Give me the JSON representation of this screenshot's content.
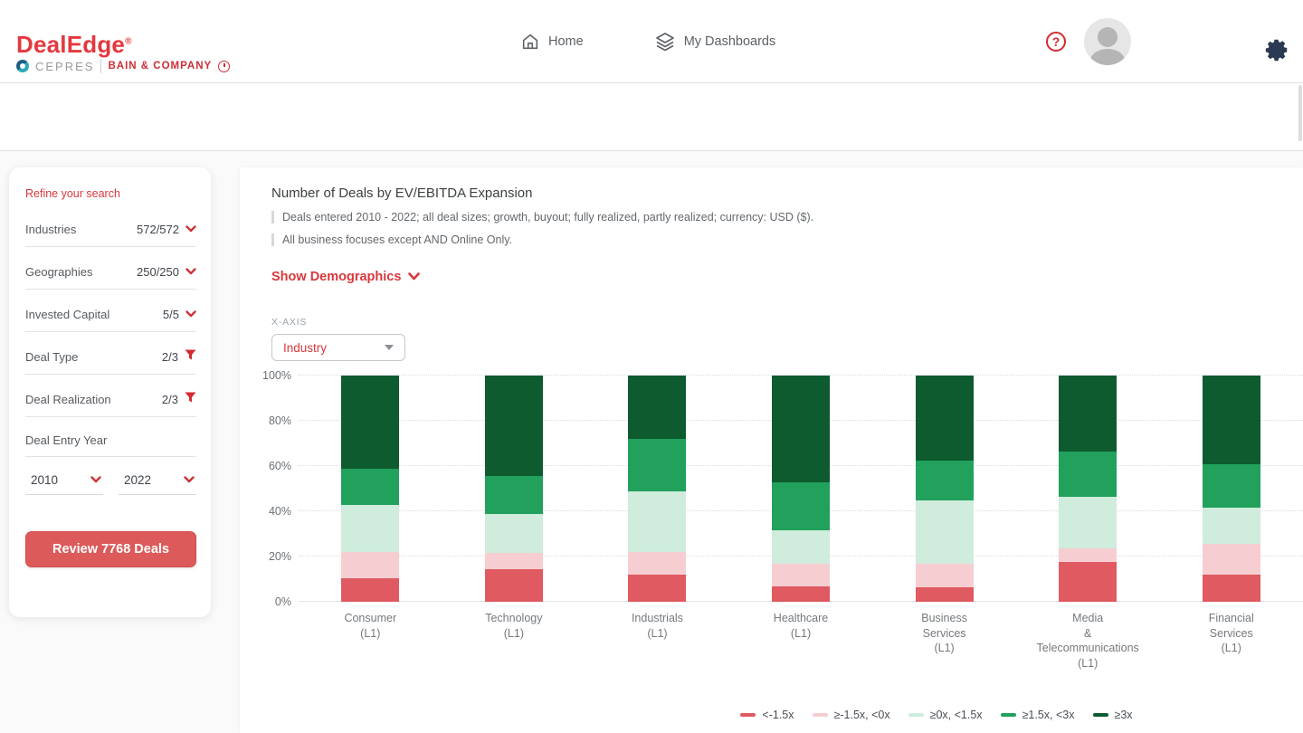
{
  "header": {
    "logo": {
      "title": "DealEdge",
      "reg": "®",
      "cepres": "CEPRES",
      "bain": "BAIN & COMPANY"
    },
    "nav": {
      "home": "Home",
      "dashboards": "My Dashboards"
    },
    "help": "?"
  },
  "sidebar": {
    "title": "Refine your search",
    "filters": [
      {
        "label": "Industries",
        "value": "572/572",
        "icon": "chevron"
      },
      {
        "label": "Geographies",
        "value": "250/250",
        "icon": "chevron"
      },
      {
        "label": "Invested Capital",
        "value": "5/5",
        "icon": "chevron"
      },
      {
        "label": "Deal Type",
        "value": "2/3",
        "icon": "filter"
      },
      {
        "label": "Deal Realization",
        "value": "2/3",
        "icon": "filter"
      },
      {
        "label": "Deal Entry Year",
        "value": "",
        "icon": "none"
      }
    ],
    "year_from": "2010",
    "year_to": "2022",
    "review_button": "Review 7768 Deals"
  },
  "main": {
    "title": "Number of Deals by EV/EBITDA Expansion",
    "subtitle_lines": [
      "Deals entered 2010 - 2022; all deal sizes; growth, buyout; fully realized, partly realized; currency: USD ($).",
      "All business focuses except AND Online Only."
    ],
    "show_demographics": "Show Demographics",
    "xaxis_label": "X-AXIS",
    "xaxis_value": "Industry"
  },
  "chart_data": {
    "type": "bar",
    "stacked": true,
    "unit": "percent",
    "title": "Number of Deals by EV/EBITDA Expansion",
    "categories": [
      [
        "Consumer",
        "(L1)"
      ],
      [
        "Technology",
        "(L1)"
      ],
      [
        "Industrials",
        "(L1)"
      ],
      [
        "Healthcare",
        "(L1)"
      ],
      [
        "Business",
        "Services",
        "(L1)"
      ],
      [
        "Media",
        "&",
        "Telecommunications",
        "(L1)"
      ],
      [
        "Financial",
        "Services",
        "(L1)"
      ]
    ],
    "series": [
      {
        "name": "<-1.5x",
        "color": "#df5a61",
        "values": [
          10.5,
          14.5,
          12,
          7,
          6.5,
          17.5,
          12
        ]
      },
      {
        "name": "≥-1.5x, <0x",
        "color": "#f6ced2",
        "values": [
          11.5,
          7,
          10,
          10,
          10.5,
          6,
          13.5
        ]
      },
      {
        "name": "≥0x, <1.5x",
        "color": "#cfecdc",
        "values": [
          21,
          17.5,
          27,
          14.5,
          28,
          23,
          16
        ]
      },
      {
        "name": "≥1.5x, <3x",
        "color": "#21a15c",
        "values": [
          16,
          16.5,
          23,
          21.5,
          17.5,
          20,
          19.5
        ]
      },
      {
        "name": "≥3x",
        "color": "#0d5b2f",
        "values": [
          41,
          44.5,
          28,
          47,
          37.5,
          33.5,
          39
        ]
      }
    ],
    "y_ticks": [
      "0%",
      "20%",
      "40%",
      "60%",
      "80%",
      "100%"
    ],
    "ylim": [
      0,
      100
    ],
    "grid": "dotted-horizontal",
    "legend_position": "bottom-center"
  },
  "colors": {
    "brand_red": "#d8383d",
    "button_red": "#dd5a5a",
    "gear_navy": "#2b3a52"
  }
}
